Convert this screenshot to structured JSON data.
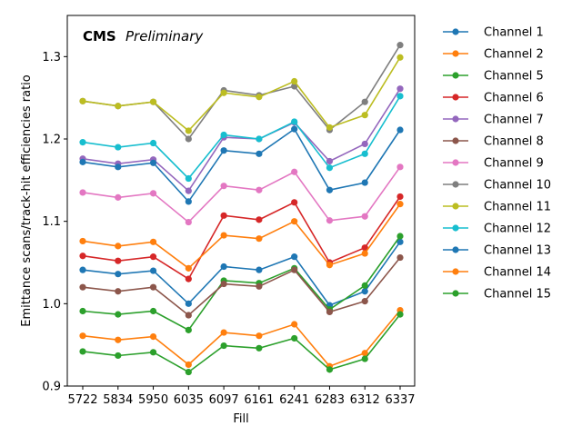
{
  "chart_data": {
    "type": "line",
    "annotation_bold": "CMS",
    "annotation_italic": "Preliminary",
    "xlabel": "Fill",
    "ylabel": "Emittance scans/track-hit efficiencies ratio",
    "categories": [
      "5722",
      "5834",
      "5950",
      "6035",
      "6097",
      "6161",
      "6241",
      "6283",
      "6312",
      "6337"
    ],
    "ylim": [
      0.9,
      1.35
    ],
    "yticks": [
      "0.9",
      "1.0",
      "1.1",
      "1.2",
      "1.3"
    ],
    "legend_position": "outside-right",
    "series": [
      {
        "name": "Channel 1",
        "color": "#1f77b4",
        "values": [
          1.041,
          1.036,
          1.04,
          1.0,
          1.045,
          1.041,
          1.057,
          0.998,
          1.015,
          1.075
        ]
      },
      {
        "name": "Channel 2",
        "color": "#ff7f0e",
        "values": [
          0.961,
          0.956,
          0.96,
          0.926,
          0.965,
          0.961,
          0.975,
          0.924,
          0.94,
          0.992
        ]
      },
      {
        "name": "Channel 5",
        "color": "#2ca02c",
        "values": [
          0.991,
          0.987,
          0.991,
          0.968,
          1.028,
          1.025,
          1.043,
          0.993,
          1.022,
          1.082
        ]
      },
      {
        "name": "Channel 6",
        "color": "#d62728",
        "values": [
          1.058,
          1.052,
          1.057,
          1.03,
          1.107,
          1.102,
          1.123,
          1.05,
          1.068,
          1.13
        ]
      },
      {
        "name": "Channel 7",
        "color": "#9467bd",
        "values": [
          1.176,
          1.17,
          1.175,
          1.137,
          1.202,
          1.2,
          1.22,
          1.173,
          1.194,
          1.261
        ]
      },
      {
        "name": "Channel 8",
        "color": "#8c564b",
        "values": [
          1.02,
          1.015,
          1.02,
          0.986,
          1.024,
          1.021,
          1.041,
          0.99,
          1.003,
          1.056
        ]
      },
      {
        "name": "Channel 9",
        "color": "#e377c2",
        "values": [
          1.135,
          1.129,
          1.134,
          1.099,
          1.143,
          1.138,
          1.16,
          1.101,
          1.106,
          1.166
        ]
      },
      {
        "name": "Channel 10",
        "color": "#7f7f7f",
        "values": [
          1.246,
          1.24,
          1.245,
          1.2,
          1.259,
          1.253,
          1.264,
          1.211,
          1.245,
          1.314
        ]
      },
      {
        "name": "Channel 11",
        "color": "#bcbd22",
        "values": [
          1.246,
          1.24,
          1.245,
          1.21,
          1.256,
          1.251,
          1.27,
          1.214,
          1.229,
          1.299
        ]
      },
      {
        "name": "Channel 12",
        "color": "#17becf",
        "values": [
          1.196,
          1.19,
          1.195,
          1.152,
          1.205,
          1.2,
          1.221,
          1.165,
          1.182,
          1.252
        ]
      },
      {
        "name": "Channel 13",
        "color": "#1f77b4",
        "values": [
          1.172,
          1.166,
          1.171,
          1.124,
          1.186,
          1.182,
          1.212,
          1.138,
          1.147,
          1.211
        ]
      },
      {
        "name": "Channel 14",
        "color": "#ff7f0e",
        "values": [
          1.076,
          1.07,
          1.075,
          1.043,
          1.083,
          1.079,
          1.1,
          1.047,
          1.061,
          1.121
        ]
      },
      {
        "name": "Channel 15",
        "color": "#2ca02c",
        "values": [
          0.942,
          0.937,
          0.941,
          0.917,
          0.949,
          0.946,
          0.958,
          0.92,
          0.933,
          0.987
        ]
      }
    ]
  }
}
